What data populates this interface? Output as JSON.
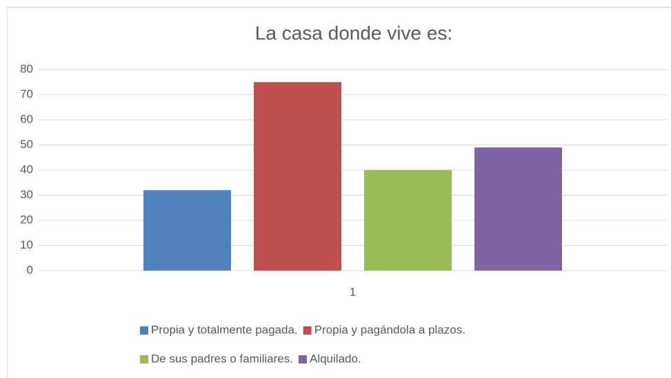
{
  "chart_data": {
    "type": "bar",
    "title": "La casa donde vive es:",
    "categories": [
      "1"
    ],
    "series": [
      {
        "name": "Propia y totalmente pagada.",
        "color": "#4f81bd",
        "values": [
          32
        ]
      },
      {
        "name": "Propia y pagándola a plazos.",
        "color": "#c0504d",
        "values": [
          75
        ]
      },
      {
        "name": "De sus padres o familiares.",
        "color": "#9bbb59",
        "values": [
          40
        ]
      },
      {
        "name": "Alquilado.",
        "color": "#8064a2",
        "values": [
          49
        ]
      }
    ],
    "ylim": [
      0,
      80
    ],
    "yticks": [
      0,
      10,
      20,
      30,
      40,
      50,
      60,
      70,
      80
    ],
    "grid": true,
    "legend": "bottom"
  }
}
